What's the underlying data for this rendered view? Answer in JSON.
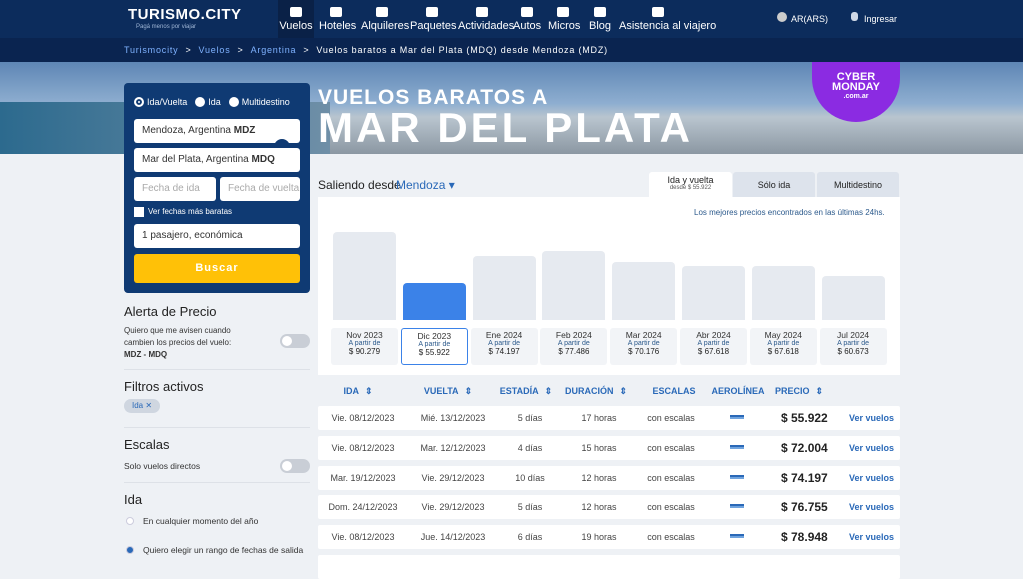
{
  "header": {
    "logo": "TURISMO.CITY",
    "tagline": "Pagá menos por viajar",
    "nav": [
      "Vuelos",
      "Hoteles",
      "Alquileres",
      "Paquetes",
      "Actividades",
      "Autos",
      "Micros",
      "Blog",
      "Asistencia al viajero"
    ],
    "currency": "AR(ARS)",
    "login": "Ingresar"
  },
  "breadcrumb": {
    "separator": ">",
    "items": [
      "Turismocity",
      "Vuelos",
      "Argentina",
      "Vuelos baratos a Mar del Plata (MDQ) desde Mendoza (MDZ)"
    ]
  },
  "hero": {
    "line1": "VUELOS BARATOS A",
    "line2": "MAR DEL PLATA",
    "badge": [
      "CYBER",
      "MONDAY",
      ".com.ar"
    ]
  },
  "search": {
    "trip_types": [
      "Ida/Vuelta",
      "Ida",
      "Multidestino"
    ],
    "origin": "Mendoza, Argentina",
    "origin_code": "MDZ",
    "destination": "Mar del Plata, Argentina",
    "destination_code": "MDQ",
    "date_out": "Fecha de ida",
    "date_back": "Fecha de vuelta",
    "cheapest_dates": "Ver fechas más baratas",
    "passengers": "1 pasajero, económica",
    "button": "Buscar"
  },
  "sidebar": {
    "alert_title": "Alerta de Precio",
    "alert_text": "Quiero que me avisen cuando cambien los precios del vuelo:",
    "alert_route": "MDZ - MDQ",
    "filters_title": "Filtros activos",
    "filter_chip": "Ida",
    "stops_title": "Escalas",
    "direct_only": "Solo vuelos directos",
    "ida_title": "Ida",
    "ida_options": [
      "En cualquier momento del año",
      "Quiero elegir un rango de fechas de salida"
    ]
  },
  "main": {
    "departing_label": "Saliendo desde",
    "departing_city": "Mendoza",
    "tabs": [
      {
        "label": "Ida y vuelta",
        "sub": "desde $ 55.922"
      },
      {
        "label": "Sólo ida"
      },
      {
        "label": "Multidestino"
      }
    ],
    "best_prices_note": "Los mejores precios encontrados en las últimas 24hs.",
    "from_label": "A partir de",
    "selected_month": 1,
    "months": [
      {
        "month": "Nov 2023",
        "price": 90279,
        "price_label": "$ 90.279"
      },
      {
        "month": "Dic 2023",
        "price": 55922,
        "price_label": "$ 55.922"
      },
      {
        "month": "Ene 2024",
        "price": 74197,
        "price_label": "$ 74.197"
      },
      {
        "month": "Feb 2024",
        "price": 77486,
        "price_label": "$ 77.486"
      },
      {
        "month": "Mar 2024",
        "price": 70176,
        "price_label": "$ 70.176"
      },
      {
        "month": "Abr 2024",
        "price": 67618,
        "price_label": "$ 67.618"
      },
      {
        "month": "May 2024",
        "price": 67618,
        "price_label": "$ 67.618"
      },
      {
        "month": "Jul 2024",
        "price": 60673,
        "price_label": "$ 60.673"
      }
    ],
    "columns": [
      "IDA",
      "VUELTA",
      "ESTADÍA",
      "DURACIÓN",
      "ESCALAS",
      "AEROLÍNEA",
      "PRECIO"
    ],
    "rows": [
      [
        "Vie. 08/12/2023",
        "Mié. 13/12/2023",
        "5 días",
        "17 horas",
        "con escalas",
        "$ 55.922"
      ],
      [
        "Vie. 08/12/2023",
        "Mar. 12/12/2023",
        "4 días",
        "15 horas",
        "con escalas",
        "$ 72.004"
      ],
      [
        "Mar. 19/12/2023",
        "Vie. 29/12/2023",
        "10 días",
        "12 horas",
        "con escalas",
        "$ 74.197"
      ],
      [
        "Dom. 24/12/2023",
        "Vie. 29/12/2023",
        "5 días",
        "12 horas",
        "con escalas",
        "$ 76.755"
      ],
      [
        "Vie. 08/12/2023",
        "Jue. 14/12/2023",
        "6 días",
        "19 horas",
        "con escalas",
        "$ 78.948"
      ]
    ],
    "row_action": "Ver vuelos"
  }
}
